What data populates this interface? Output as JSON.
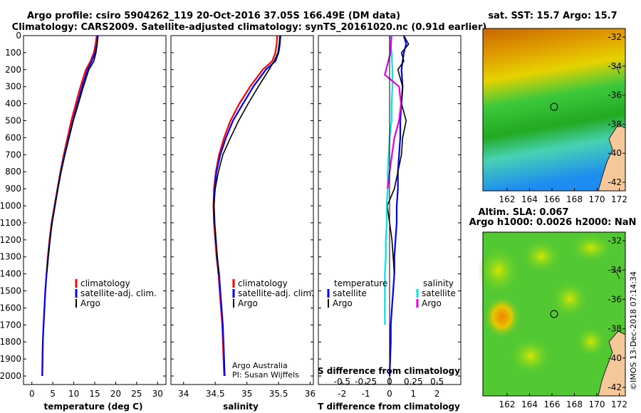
{
  "title_line1": "Argo profile: csiro 5904262_119 20-Oct-2016 37.05S 166.49E (DM data)",
  "title_line2": "Climatology: CARS2009. Satellite-adjusted climatology: synTS_20161020.nc (0.91d earlier)",
  "depth_ticks": [
    "0",
    "100",
    "200",
    "300",
    "400",
    "500",
    "600",
    "700",
    "800",
    "900",
    "1000",
    "1100",
    "1200",
    "1300",
    "1400",
    "1500",
    "1600",
    "1700",
    "1800",
    "1900",
    "2000"
  ],
  "legend": {
    "climatology": "climatology",
    "satellite": "satellite-adj. clim.",
    "argo": "Argo"
  },
  "credit_line1": "Argo Australia",
  "credit_line2": "PI: Susan Wijffels",
  "diff_legend": {
    "temperature_heading": "temperature",
    "salinity_heading": "salinity",
    "satellite": "satellite",
    "argo": "Argo"
  },
  "map_top": {
    "title": "sat. SST: 15.7 Argo: 15.7",
    "lat_ticks": [
      "-32",
      "-34",
      "-36",
      "-38",
      "-40",
      "-42"
    ],
    "lon_ticks": [
      "162",
      "164",
      "166",
      "168",
      "170",
      "172"
    ]
  },
  "map_bottom": {
    "title_line1": "Altim. SLA: 0.067",
    "title_line2": "Argo h1000: 0.0026 h2000: NaN",
    "lat_ticks": [
      "-32",
      "-34",
      "-36",
      "-38",
      "-40",
      "-42"
    ],
    "lon_ticks": [
      "162",
      "164",
      "166",
      "168",
      "170",
      "172"
    ]
  },
  "watermark": "©IMOS 13-Dec-2018 07:14:34",
  "colors": {
    "climatology": "#ff0000",
    "satellite": "#0000ff",
    "argo": "#000000",
    "sal_sat": "#00e6e6",
    "sal_argo": "#e600e6"
  },
  "chart_data": [
    {
      "type": "line",
      "title": "",
      "xlabel": "temperature (deg C)",
      "ylabel": "depth",
      "x_ticks": [
        "0",
        "5",
        "10",
        "15",
        "20",
        "25",
        "30"
      ],
      "xlim": [
        -2,
        32
      ],
      "ylim": [
        2050,
        0
      ],
      "series": [
        {
          "name": "climatology",
          "color": "#ff0000",
          "x": [
            15.5,
            15.2,
            14.8,
            14.0,
            12.9,
            11.6,
            10.5,
            9.4,
            8.5,
            7.6,
            6.8,
            6.1,
            5.4,
            4.7,
            4.2,
            3.8,
            3.5,
            3.2,
            3.0,
            2.8,
            2.6,
            2.5
          ],
          "depth": [
            0,
            50,
            100,
            150,
            200,
            300,
            400,
            500,
            600,
            700,
            800,
            900,
            1000,
            1100,
            1200,
            1300,
            1400,
            1500,
            1600,
            1700,
            1800,
            2000
          ]
        },
        {
          "name": "satellite-adj. clim.",
          "color": "#0000ff",
          "x": [
            15.7,
            15.5,
            15.1,
            14.3,
            13.3,
            12.0,
            10.9,
            9.8,
            8.8,
            7.8,
            6.9,
            6.2,
            5.5,
            4.8,
            4.3,
            3.9,
            3.5,
            3.2,
            3.0,
            2.8,
            2.6,
            2.45
          ],
          "depth": [
            0,
            50,
            100,
            150,
            200,
            300,
            400,
            500,
            600,
            700,
            800,
            900,
            1000,
            1100,
            1200,
            1300,
            1400,
            1500,
            1600,
            1700,
            1800,
            2000
          ]
        },
        {
          "name": "Argo",
          "color": "#000000",
          "x": [
            15.8,
            15.6,
            15.3,
            14.8,
            13.6,
            12.3,
            11.1,
            9.9,
            8.9,
            7.9,
            7.0,
            6.2,
            5.5,
            4.8,
            4.3,
            3.9,
            3.5
          ],
          "depth": [
            0,
            50,
            100,
            150,
            200,
            300,
            400,
            500,
            600,
            700,
            800,
            900,
            1000,
            1100,
            1200,
            1300,
            1400
          ]
        }
      ]
    },
    {
      "type": "line",
      "title": "",
      "xlabel": "salinity",
      "ylabel": "depth",
      "x_ticks": [
        "34",
        "34.5",
        "35",
        "35.5",
        "36"
      ],
      "xlim": [
        33.8,
        36.05
      ],
      "ylim": [
        2050,
        0
      ],
      "series": [
        {
          "name": "climatology",
          "color": "#ff0000",
          "x": [
            35.48,
            35.47,
            35.45,
            35.4,
            35.25,
            35.05,
            34.88,
            34.74,
            34.64,
            34.56,
            34.51,
            34.48,
            34.47,
            34.48,
            34.5,
            34.52,
            34.55,
            34.57,
            34.59,
            34.61,
            34.62,
            34.64
          ],
          "depth": [
            0,
            50,
            100,
            150,
            200,
            300,
            400,
            500,
            600,
            700,
            800,
            900,
            1000,
            1100,
            1200,
            1300,
            1400,
            1500,
            1600,
            1700,
            1800,
            2000
          ]
        },
        {
          "name": "satellite-adj. clim.",
          "color": "#0000ff",
          "x": [
            35.53,
            35.52,
            35.5,
            35.45,
            35.3,
            35.1,
            34.94,
            34.78,
            34.67,
            34.58,
            34.52,
            34.49,
            34.48,
            34.49,
            34.51,
            34.53,
            34.56,
            34.58,
            34.6,
            34.62,
            34.63,
            34.65
          ],
          "depth": [
            0,
            50,
            100,
            150,
            200,
            300,
            400,
            500,
            600,
            700,
            800,
            900,
            1000,
            1100,
            1200,
            1300,
            1400,
            1500,
            1600,
            1700,
            1800,
            2000
          ]
        },
        {
          "name": "Argo",
          "color": "#000000",
          "x": [
            35.52,
            35.51,
            35.49,
            35.43,
            35.35,
            35.18,
            35.02,
            34.87,
            34.74,
            34.62,
            34.55,
            34.5,
            34.48,
            34.49,
            34.51,
            34.53,
            34.55
          ],
          "depth": [
            0,
            50,
            100,
            150,
            200,
            300,
            400,
            500,
            600,
            700,
            800,
            900,
            1000,
            1100,
            1200,
            1300,
            1400
          ]
        }
      ]
    },
    {
      "type": "line",
      "title": "",
      "xlabel": "T difference from climatology",
      "xlabel_secondary": "S difference from climatology",
      "x_ticks": [
        "-2",
        "-1",
        "0",
        "1",
        "2"
      ],
      "x_ticks_secondary": [
        "-0.5",
        "-0.25",
        "0",
        "0.25",
        "0.5"
      ],
      "xlim": [
        -3,
        3
      ],
      "ylim": [
        2050,
        0
      ],
      "series": [
        {
          "name": "temperature satellite",
          "color": "#0000ff",
          "x": [
            0.6,
            0.7,
            0.6,
            0.55,
            0.5,
            0.55,
            0.5,
            0.45,
            0.45,
            0.4,
            0.35,
            0.35,
            0.3,
            0.3,
            0.25,
            0.2,
            0.2,
            0.15,
            0.1,
            0.05,
            0.05,
            0.0
          ],
          "depth": [
            0,
            50,
            100,
            150,
            200,
            300,
            400,
            500,
            600,
            700,
            800,
            900,
            1000,
            1100,
            1200,
            1300,
            1400,
            1500,
            1600,
            1700,
            1800,
            2000
          ]
        },
        {
          "name": "temperature Argo",
          "color": "#000000",
          "x": [
            0.6,
            0.8,
            0.5,
            0.6,
            0.35,
            0.55,
            0.5,
            0.7,
            0.55,
            0.5,
            0.35,
            0.2,
            -0.1,
            0.0,
            0.1,
            0.15,
            0.2
          ],
          "depth": [
            0,
            50,
            100,
            150,
            200,
            300,
            400,
            500,
            600,
            700,
            800,
            900,
            1000,
            1100,
            1200,
            1300,
            1400
          ]
        },
        {
          "name": "salinity satellite",
          "color": "#00e6e6",
          "x": [
            0.0,
            0.02,
            0.03,
            0.03,
            0.02,
            0.02,
            0.0,
            -0.01,
            -0.02,
            -0.02,
            -0.03,
            -0.03,
            -0.04,
            -0.04,
            -0.05,
            -0.05,
            -0.05,
            -0.05
          ],
          "depth": [
            0,
            100,
            200,
            300,
            400,
            500,
            600,
            700,
            800,
            900,
            1000,
            1100,
            1200,
            1300,
            1400,
            1500,
            1600,
            1700
          ]
        },
        {
          "name": "salinity Argo",
          "color": "#e600e6",
          "x": [
            0.02,
            0.01,
            -0.05,
            0.1,
            0.12,
            0.1,
            0.05,
            0.0,
            -0.02
          ],
          "depth": [
            0,
            100,
            230,
            300,
            400,
            500,
            600,
            800,
            900
          ]
        }
      ]
    }
  ]
}
